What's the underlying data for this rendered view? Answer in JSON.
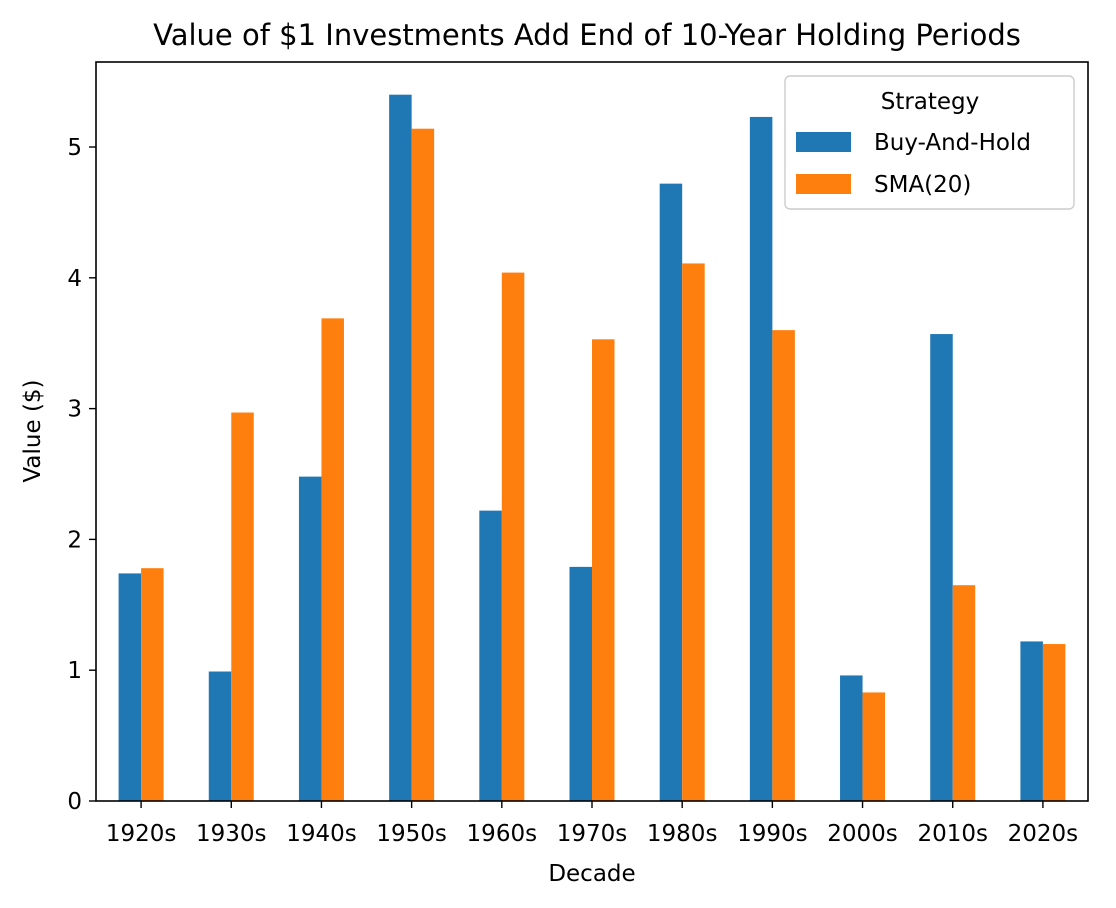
{
  "chart_data": {
    "type": "bar",
    "title": "Value of $1 Investments Add End of 10-Year Holding Periods",
    "xlabel": "Decade",
    "ylabel": "Value ($)",
    "categories": [
      "1920s",
      "1930s",
      "1940s",
      "1950s",
      "1960s",
      "1970s",
      "1980s",
      "1990s",
      "2000s",
      "2010s",
      "2020s"
    ],
    "series": [
      {
        "name": "Buy-And-Hold",
        "color": "#1f77b4",
        "values": [
          1.74,
          0.99,
          2.48,
          5.4,
          2.22,
          1.79,
          4.72,
          5.23,
          0.96,
          3.57,
          1.22
        ]
      },
      {
        "name": "SMA(20)",
        "color": "#ff7f0e",
        "values": [
          1.78,
          2.97,
          3.69,
          5.14,
          4.04,
          3.53,
          4.11,
          3.6,
          0.83,
          1.65,
          1.2
        ]
      }
    ],
    "ylim": [
      0,
      5.65
    ],
    "yticks": [
      0,
      1,
      2,
      3,
      4,
      5
    ],
    "grid": false,
    "legend": {
      "title": "Strategy",
      "position": "top-right"
    }
  }
}
